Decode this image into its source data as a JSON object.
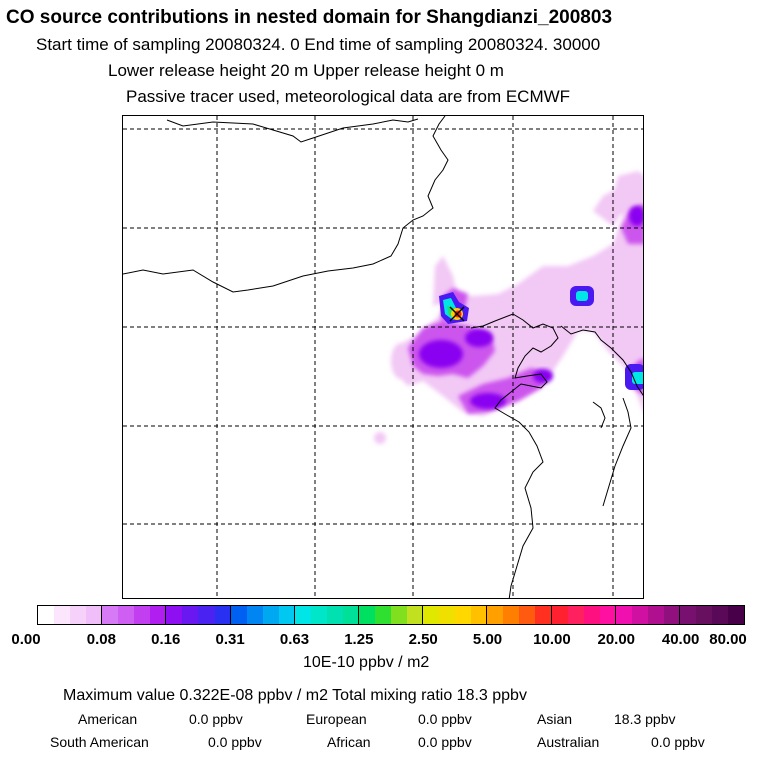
{
  "header": {
    "title": "CO  source contributions in nested domain for Shangdianzi_200803",
    "line1": "Start time of sampling 20080324.     0     End time of sampling 20080324. 30000",
    "line2": "Lower release height   20 m           Upper release height    0 m",
    "line3": "Passive tracer used, meteorological data are from ECMWF"
  },
  "map": {
    "grid_style": "dashed",
    "station_marker": "cross-icon",
    "colors": {
      "light": "#f2c8f5",
      "mid": "#cc55ee",
      "deep": "#8a00f0",
      "blue": "#4a18f0",
      "cyan": "#00e6e6",
      "green": "#20e070",
      "hot": "#ff2020",
      "yellow": "#ffd000"
    }
  },
  "colorbar": {
    "ticks": [
      "0.00",
      "0.08",
      "0.16",
      "0.31",
      "0.63",
      "1.25",
      "2.50",
      "5.00",
      "10.00",
      "20.00",
      "40.00",
      "80.00"
    ],
    "segments": [
      [
        "#ffffff",
        "#fbe6fd",
        "#f6d2fb",
        "#f0bef9"
      ],
      [
        "#d77af5",
        "#cf5ef3",
        "#c23ff1",
        "#b01ff0"
      ],
      [
        "#8e10f2",
        "#6a18f2",
        "#4a22f2",
        "#2a30f2"
      ],
      [
        "#0060f2",
        "#0085f2",
        "#00a8f2",
        "#00c8f0"
      ],
      [
        "#00e6e6",
        "#00e6c8",
        "#00e0b0",
        "#00e098"
      ],
      [
        "#00e060",
        "#30e030",
        "#80e020",
        "#c0e020"
      ],
      [
        "#e0e800",
        "#f0e000",
        "#ffd800",
        "#ffc000"
      ],
      [
        "#ffa000",
        "#ff8000",
        "#ff5a10",
        "#ff3020"
      ],
      [
        "#ff2030",
        "#ff2060",
        "#ff1080",
        "#ff10a0"
      ],
      [
        "#f010b0",
        "#d010a0",
        "#b01090",
        "#901080"
      ],
      [
        "#781070",
        "#681060",
        "#5a0858",
        "#480048"
      ]
    ],
    "units": "10E-10 ppbv / m2"
  },
  "summary": {
    "max_line": "Maximum value  0.322E-08 ppbv / m2      Total mixing ratio       18.3 ppbv",
    "sources": [
      {
        "label": "American",
        "value": "0.0 ppbv"
      },
      {
        "label": "European",
        "value": "0.0 ppbv"
      },
      {
        "label": "Asian",
        "value": "18.3 ppbv"
      },
      {
        "label": "South American",
        "value": "0.0 ppbv"
      },
      {
        "label": "African",
        "value": "0.0 ppbv"
      },
      {
        "label": "Australian",
        "value": "0.0 ppbv"
      }
    ]
  }
}
